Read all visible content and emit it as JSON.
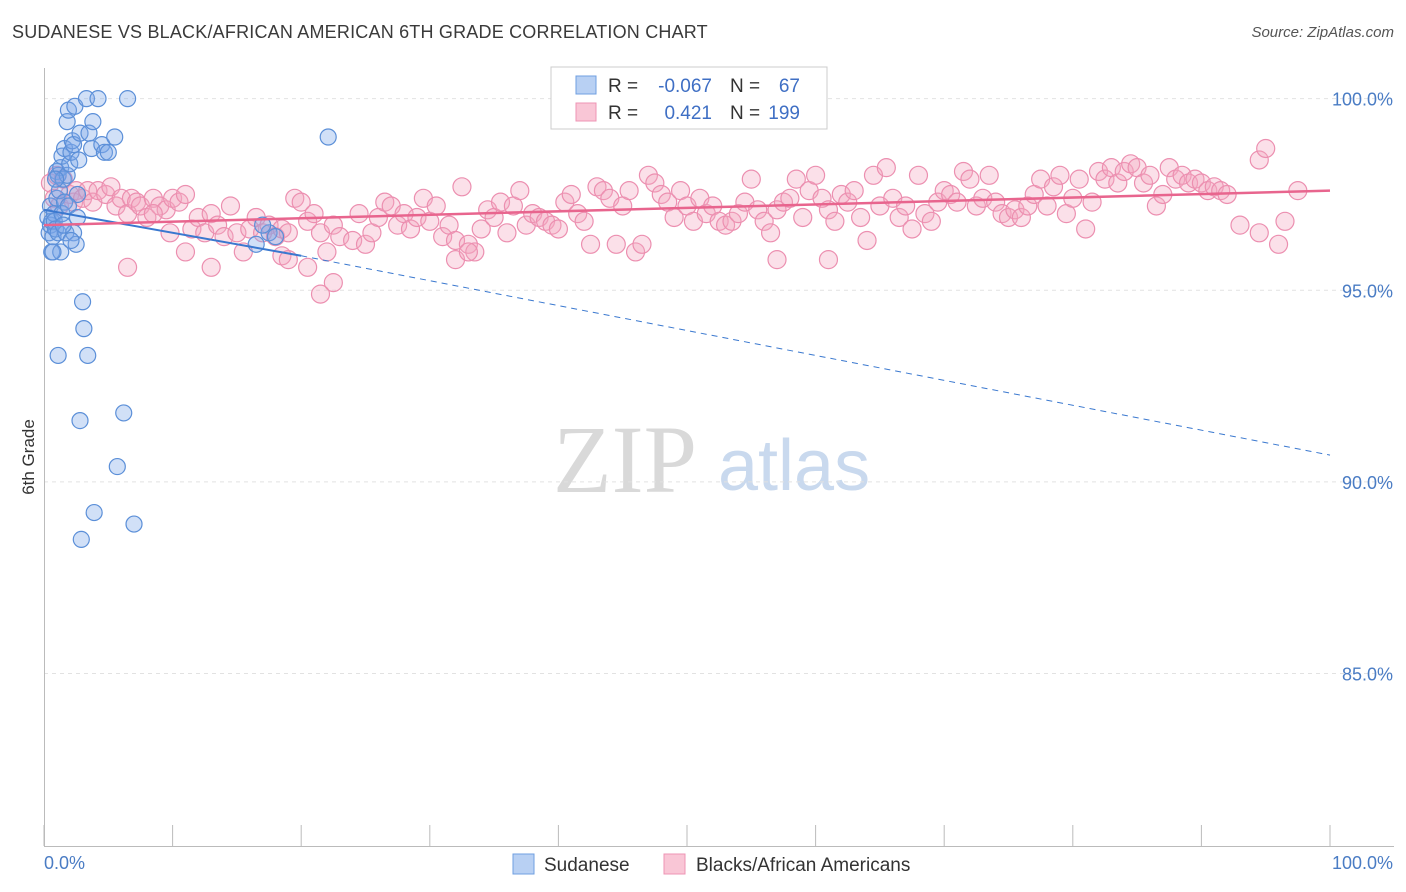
{
  "title": "SUDANESE VS BLACK/AFRICAN AMERICAN 6TH GRADE CORRELATION CHART",
  "source": "Source: ZipAtlas.com",
  "watermark": {
    "zip": "ZIP",
    "atlas": "atlas"
  },
  "chart_data": {
    "type": "scatter",
    "ylabel": "6th Grade",
    "xlabel": "",
    "xlim": [
      0,
      100
    ],
    "ylim": [
      80.5,
      100.8
    ],
    "x_tick_labels": [
      {
        "value": 0,
        "label": "0.0%"
      },
      {
        "value": 100,
        "label": "100.0%"
      }
    ],
    "y_ticks": [
      {
        "value": 100,
        "label": "100.0%"
      },
      {
        "value": 95,
        "label": "95.0%"
      },
      {
        "value": 90,
        "label": "90.0%"
      },
      {
        "value": 85,
        "label": "85.0%"
      }
    ],
    "legend": {
      "rows": [
        {
          "r_label": "R =",
          "r_value": "-0.067",
          "n_label": "N =",
          "n_value": "67"
        },
        {
          "r_label": "R =",
          "r_value": "0.421",
          "n_label": "N =",
          "n_value": "199"
        }
      ]
    },
    "series": [
      {
        "name": "Sudanese",
        "color": "#7aa7e8",
        "stroke": "#5b8fd8",
        "trend": {
          "x0": 0,
          "y0": 97.1,
          "x1": 20,
          "y1": 95.9,
          "x_end": 100,
          "y_end": 90.7,
          "color": "#3a78cf"
        },
        "points": [
          [
            0.3,
            96.9
          ],
          [
            0.4,
            96.5
          ],
          [
            0.5,
            96.7
          ],
          [
            0.5,
            97.2
          ],
          [
            0.6,
            96.0
          ],
          [
            0.6,
            96.8
          ],
          [
            0.7,
            96.4
          ],
          [
            0.8,
            97.0
          ],
          [
            0.8,
            96.8
          ],
          [
            0.9,
            96.6
          ],
          [
            1.0,
            98.1
          ],
          [
            1.0,
            97.4
          ],
          [
            1.1,
            96.5
          ],
          [
            1.1,
            98.0
          ],
          [
            1.2,
            97.6
          ],
          [
            1.3,
            96.0
          ],
          [
            1.3,
            98.2
          ],
          [
            1.4,
            98.5
          ],
          [
            1.5,
            97.9
          ],
          [
            1.6,
            98.7
          ],
          [
            1.6,
            97.3
          ],
          [
            1.7,
            96.5
          ],
          [
            1.8,
            98.0
          ],
          [
            1.8,
            99.4
          ],
          [
            1.9,
            99.7
          ],
          [
            2.0,
            98.3
          ],
          [
            2.1,
            98.6
          ],
          [
            2.2,
            98.9
          ],
          [
            2.3,
            98.8
          ],
          [
            2.3,
            96.5
          ],
          [
            2.4,
            99.8
          ],
          [
            2.5,
            96.2
          ],
          [
            2.6,
            97.5
          ],
          [
            2.7,
            98.4
          ],
          [
            2.8,
            99.1
          ],
          [
            3.0,
            94.7
          ],
          [
            3.1,
            94.0
          ],
          [
            3.3,
            100.0
          ],
          [
            3.4,
            93.3
          ],
          [
            3.5,
            99.1
          ],
          [
            3.7,
            98.7
          ],
          [
            3.8,
            99.4
          ],
          [
            4.2,
            100.0
          ],
          [
            4.5,
            98.8
          ],
          [
            4.7,
            98.6
          ],
          [
            5.0,
            98.6
          ],
          [
            5.5,
            99.0
          ],
          [
            6.5,
            100.0
          ],
          [
            6.2,
            91.8
          ],
          [
            5.7,
            90.4
          ],
          [
            3.9,
            89.2
          ],
          [
            2.9,
            88.5
          ],
          [
            7.0,
            88.9
          ],
          [
            2.8,
            91.6
          ],
          [
            1.1,
            93.3
          ],
          [
            0.7,
            96.0
          ],
          [
            1.4,
            97.0
          ],
          [
            1.9,
            97.2
          ],
          [
            2.1,
            96.3
          ],
          [
            0.9,
            97.9
          ],
          [
            16.5,
            96.2
          ],
          [
            17.5,
            96.5
          ],
          [
            17.0,
            96.7
          ],
          [
            18.0,
            96.4
          ],
          [
            1.5,
            96.7
          ],
          [
            22.1,
            99.0
          ],
          [
            2.6,
            96.9
          ]
        ]
      },
      {
        "name": "Blacks/African Americans",
        "color": "#f4a6c0",
        "stroke": "#ec8fb0",
        "trend": {
          "x0": 0,
          "y0": 96.7,
          "x1": 100,
          "y1": 97.6,
          "color": "#e8658e"
        },
        "points": [
          [
            0.5,
            97.8
          ],
          [
            0.8,
            97.4
          ],
          [
            1.0,
            98.0
          ],
          [
            1.2,
            97.2
          ],
          [
            1.5,
            97.9
          ],
          [
            2.0,
            97.5
          ],
          [
            2.3,
            97.3
          ],
          [
            2.5,
            97.6
          ],
          [
            3.0,
            97.4
          ],
          [
            3.4,
            97.6
          ],
          [
            3.8,
            97.3
          ],
          [
            4.2,
            97.6
          ],
          [
            4.8,
            97.5
          ],
          [
            5.2,
            97.7
          ],
          [
            5.6,
            97.2
          ],
          [
            6.0,
            97.4
          ],
          [
            6.5,
            97.0
          ],
          [
            6.8,
            97.4
          ],
          [
            7.2,
            97.3
          ],
          [
            7.5,
            97.2
          ],
          [
            8.0,
            96.9
          ],
          [
            8.5,
            97.4
          ],
          [
            9.0,
            97.2
          ],
          [
            9.5,
            97.1
          ],
          [
            10.0,
            97.4
          ],
          [
            10.5,
            97.3
          ],
          [
            11.0,
            97.5
          ],
          [
            11.5,
            96.6
          ],
          [
            12.0,
            96.9
          ],
          [
            12.5,
            96.5
          ],
          [
            13.0,
            97.0
          ],
          [
            13.5,
            96.7
          ],
          [
            14.0,
            96.4
          ],
          [
            14.5,
            97.2
          ],
          [
            15.0,
            96.5
          ],
          [
            15.5,
            96.0
          ],
          [
            16.0,
            96.6
          ],
          [
            16.5,
            96.9
          ],
          [
            17.0,
            96.5
          ],
          [
            17.5,
            96.7
          ],
          [
            18.0,
            96.4
          ],
          [
            18.5,
            96.6
          ],
          [
            19.0,
            96.5
          ],
          [
            19.5,
            97.4
          ],
          [
            20.0,
            97.3
          ],
          [
            20.5,
            96.8
          ],
          [
            21.0,
            97.0
          ],
          [
            21.5,
            96.5
          ],
          [
            22.0,
            96.0
          ],
          [
            22.5,
            96.7
          ],
          [
            23.0,
            96.4
          ],
          [
            24.0,
            96.3
          ],
          [
            24.5,
            97.0
          ],
          [
            25.0,
            96.2
          ],
          [
            25.5,
            96.5
          ],
          [
            26.0,
            96.9
          ],
          [
            26.5,
            97.3
          ],
          [
            27.0,
            97.2
          ],
          [
            27.5,
            96.7
          ],
          [
            28.0,
            97.0
          ],
          [
            28.5,
            96.6
          ],
          [
            29.0,
            96.9
          ],
          [
            29.5,
            97.4
          ],
          [
            30.0,
            96.8
          ],
          [
            30.5,
            97.2
          ],
          [
            31.0,
            96.4
          ],
          [
            31.5,
            96.7
          ],
          [
            32.0,
            96.3
          ],
          [
            32.5,
            97.7
          ],
          [
            33.0,
            96.2
          ],
          [
            33.5,
            96.0
          ],
          [
            34.0,
            96.6
          ],
          [
            34.5,
            97.1
          ],
          [
            35.0,
            96.9
          ],
          [
            35.5,
            97.3
          ],
          [
            36.0,
            96.5
          ],
          [
            36.5,
            97.2
          ],
          [
            37.0,
            97.6
          ],
          [
            37.5,
            96.7
          ],
          [
            38.0,
            97.0
          ],
          [
            38.5,
            96.9
          ],
          [
            39.0,
            96.8
          ],
          [
            39.5,
            96.7
          ],
          [
            40.0,
            96.6
          ],
          [
            40.5,
            97.3
          ],
          [
            41.0,
            97.5
          ],
          [
            41.5,
            97.0
          ],
          [
            42.0,
            96.8
          ],
          [
            42.5,
            96.2
          ],
          [
            43.0,
            97.7
          ],
          [
            43.5,
            97.6
          ],
          [
            44.0,
            97.4
          ],
          [
            44.5,
            96.2
          ],
          [
            45.0,
            97.2
          ],
          [
            45.5,
            97.6
          ],
          [
            46.0,
            96.0
          ],
          [
            46.5,
            96.2
          ],
          [
            47.0,
            98.0
          ],
          [
            47.5,
            97.8
          ],
          [
            48.0,
            97.5
          ],
          [
            48.5,
            97.3
          ],
          [
            49.0,
            96.9
          ],
          [
            49.5,
            97.6
          ],
          [
            50.0,
            97.2
          ],
          [
            50.5,
            96.8
          ],
          [
            51.0,
            97.4
          ],
          [
            51.5,
            97.0
          ],
          [
            52.0,
            97.2
          ],
          [
            52.5,
            96.8
          ],
          [
            53.0,
            96.7
          ],
          [
            53.5,
            96.8
          ],
          [
            54.0,
            97.0
          ],
          [
            54.5,
            97.3
          ],
          [
            55.0,
            97.9
          ],
          [
            55.5,
            97.1
          ],
          [
            56.0,
            96.8
          ],
          [
            56.5,
            96.5
          ],
          [
            57.0,
            97.1
          ],
          [
            57.5,
            97.3
          ],
          [
            58.0,
            97.4
          ],
          [
            58.5,
            97.9
          ],
          [
            59.0,
            96.9
          ],
          [
            59.5,
            97.6
          ],
          [
            60.0,
            98.0
          ],
          [
            60.5,
            97.4
          ],
          [
            61.0,
            97.1
          ],
          [
            61.5,
            96.8
          ],
          [
            62.0,
            97.5
          ],
          [
            62.5,
            97.3
          ],
          [
            63.0,
            97.6
          ],
          [
            63.5,
            96.9
          ],
          [
            64.0,
            96.3
          ],
          [
            64.5,
            98.0
          ],
          [
            65.0,
            97.2
          ],
          [
            65.5,
            98.2
          ],
          [
            66.0,
            97.4
          ],
          [
            66.5,
            96.9
          ],
          [
            67.0,
            97.2
          ],
          [
            67.5,
            96.6
          ],
          [
            68.0,
            98.0
          ],
          [
            68.5,
            97.0
          ],
          [
            69.0,
            96.8
          ],
          [
            69.5,
            97.3
          ],
          [
            70.0,
            97.6
          ],
          [
            70.5,
            97.5
          ],
          [
            71.0,
            97.3
          ],
          [
            71.5,
            98.1
          ],
          [
            72.0,
            97.9
          ],
          [
            72.5,
            97.2
          ],
          [
            73.0,
            97.4
          ],
          [
            73.5,
            98.0
          ],
          [
            74.0,
            97.3
          ],
          [
            74.5,
            97.0
          ],
          [
            75.0,
            96.9
          ],
          [
            75.5,
            97.1
          ],
          [
            76.0,
            96.9
          ],
          [
            76.5,
            97.2
          ],
          [
            77.0,
            97.5
          ],
          [
            77.5,
            97.9
          ],
          [
            78.0,
            97.2
          ],
          [
            78.5,
            97.7
          ],
          [
            79.0,
            98.0
          ],
          [
            79.5,
            97.0
          ],
          [
            80.0,
            97.4
          ],
          [
            80.5,
            97.9
          ],
          [
            81.0,
            96.6
          ],
          [
            81.5,
            97.3
          ],
          [
            82.0,
            98.1
          ],
          [
            82.5,
            97.9
          ],
          [
            83.0,
            98.2
          ],
          [
            83.5,
            97.8
          ],
          [
            84.0,
            98.1
          ],
          [
            84.5,
            98.3
          ],
          [
            85.0,
            98.2
          ],
          [
            85.5,
            97.8
          ],
          [
            86.0,
            98.0
          ],
          [
            86.5,
            97.2
          ],
          [
            87.0,
            97.5
          ],
          [
            87.5,
            98.2
          ],
          [
            88.0,
            97.9
          ],
          [
            88.5,
            98.0
          ],
          [
            89.0,
            97.8
          ],
          [
            89.5,
            97.9
          ],
          [
            90.0,
            97.8
          ],
          [
            90.5,
            97.6
          ],
          [
            91.0,
            97.7
          ],
          [
            91.5,
            97.6
          ],
          [
            92.0,
            97.5
          ],
          [
            93.0,
            96.7
          ],
          [
            94.5,
            98.4
          ],
          [
            95.0,
            98.7
          ],
          [
            96.0,
            96.2
          ],
          [
            96.5,
            96.8
          ],
          [
            97.5,
            97.6
          ],
          [
            18.5,
            95.9
          ],
          [
            19.0,
            95.8
          ],
          [
            20.5,
            95.6
          ],
          [
            13.0,
            95.6
          ],
          [
            22.5,
            95.2
          ],
          [
            21.5,
            94.9
          ],
          [
            32.0,
            95.8
          ],
          [
            33.0,
            96.0
          ],
          [
            57.0,
            95.8
          ],
          [
            61.0,
            95.8
          ],
          [
            6.5,
            95.6
          ],
          [
            8.5,
            97.0
          ],
          [
            9.8,
            96.5
          ],
          [
            11.0,
            96.0
          ],
          [
            94.5,
            96.5
          ]
        ]
      }
    ]
  }
}
